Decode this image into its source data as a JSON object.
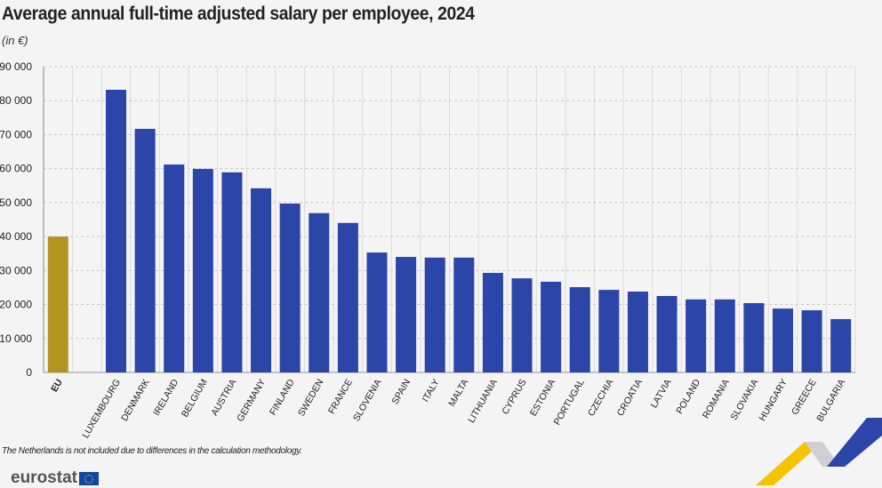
{
  "title": "Average annual full-time adjusted salary per employee, 2024",
  "unit": "(in €)",
  "note": "The Netherlands is not included due to differences in the calculation methodology.",
  "logo": "eurostat",
  "colors": {
    "eu": "#b39422",
    "country": "#2b45a8"
  },
  "chart_data": {
    "type": "bar",
    "title": "Average annual full-time adjusted salary per employee, 2024",
    "ylabel": "(in €)",
    "ylim": [
      0,
      90000
    ],
    "yticks": [
      0,
      10000,
      20000,
      30000,
      40000,
      50000,
      60000,
      70000,
      80000,
      90000
    ],
    "ytick_labels": [
      "0",
      "10 000",
      "20 000",
      "30 000",
      "40 000",
      "50 000",
      "60 000",
      "70 000",
      "80 000",
      "90 000"
    ],
    "grid": true,
    "categories": [
      "EU",
      "",
      "LUXEMBOURG",
      "DENMARK",
      "IRELAND",
      "BELGIUM",
      "AUSTRIA",
      "GERMANY",
      "FINLAND",
      "SWEDEN",
      "FRANCE",
      "SLOVENIA",
      "SPAIN",
      "ITALY",
      "MALTA",
      "LITHUANIA",
      "CYPRUS",
      "ESTONIA",
      "PORTUGAL",
      "CZECHIA",
      "CROATIA",
      "LATVIA",
      "POLAND",
      "ROMANIA",
      "SLOVAKIA",
      "HUNGARY",
      "GREECE",
      "BULGARIA"
    ],
    "values": [
      40000,
      null,
      83200,
      71700,
      61200,
      59900,
      58900,
      54200,
      49700,
      46900,
      44000,
      35300,
      34000,
      33800,
      33800,
      29300,
      27700,
      26700,
      25100,
      24300,
      23800,
      22500,
      21500,
      21500,
      20400,
      18800,
      18300,
      15700
    ]
  }
}
